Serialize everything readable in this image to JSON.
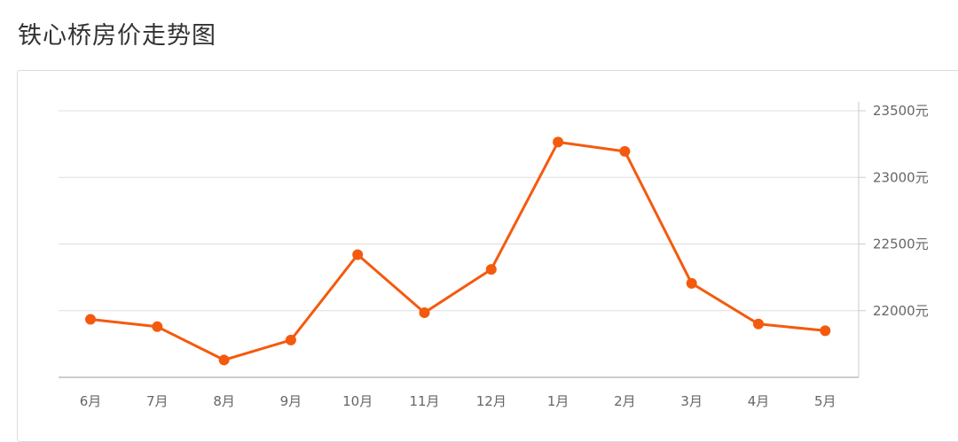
{
  "page": {
    "title": "铁心桥房价走势图"
  },
  "colors": {
    "line": "#f45a0e",
    "grid": "#dddddd",
    "axis": "#cccccc",
    "text": "#666666"
  },
  "chart_data": {
    "type": "line",
    "title": "",
    "xlabel": "",
    "ylabel": "",
    "unit": "元",
    "categories": [
      "6月",
      "7月",
      "8月",
      "9月",
      "10月",
      "11月",
      "12月",
      "1月",
      "2月",
      "3月",
      "4月",
      "5月"
    ],
    "series": [
      {
        "values": [
          21935,
          21880,
          21630,
          21780,
          22420,
          21985,
          22310,
          23265,
          23195,
          22205,
          21900,
          21850
        ]
      }
    ],
    "yticks": [
      "22000元",
      "22500元",
      "23000元",
      "23500元"
    ],
    "ytick_values": [
      22000,
      22500,
      23000,
      23500
    ],
    "ylim": [
      21500,
      23500
    ],
    "grid": true,
    "y_axis_position": "right"
  }
}
